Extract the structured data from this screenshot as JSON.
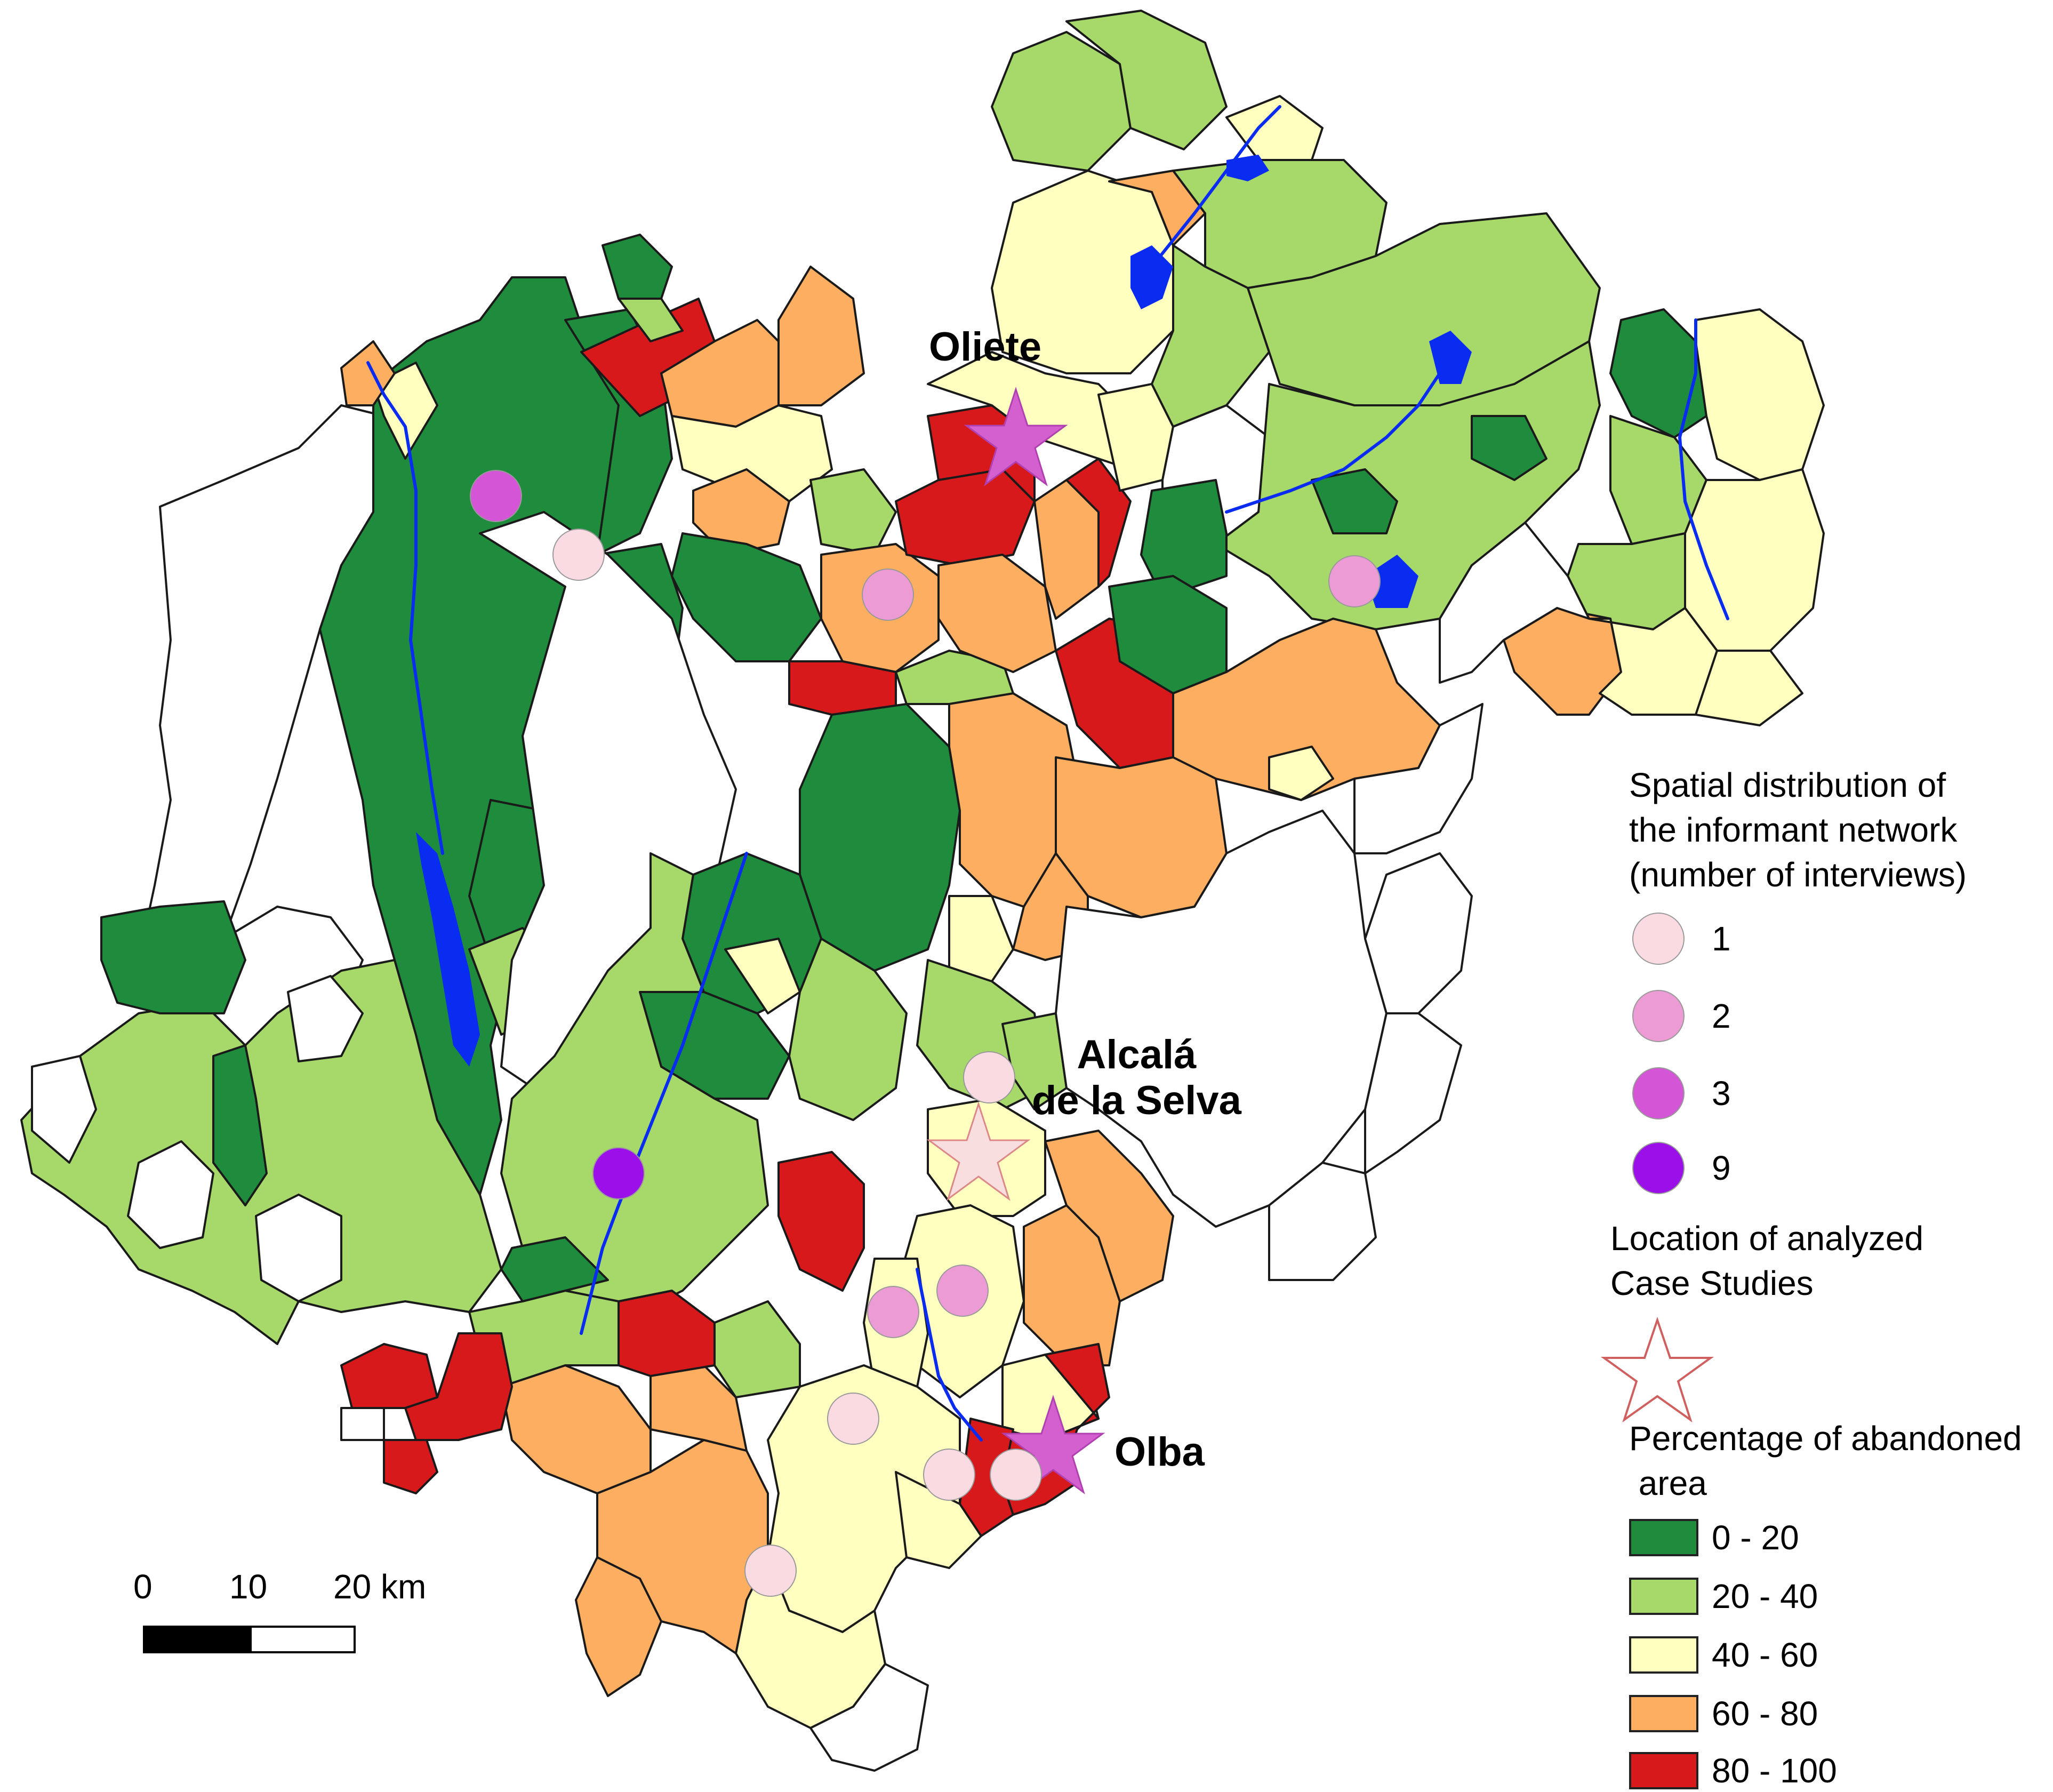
{
  "colors": {
    "c0_20": "#1e8c3c",
    "c20_40": "#a6d96a",
    "c40_60": "#ffffc0",
    "c60_80": "#fdae61",
    "c80_100": "#d7191c",
    "none": "#ffffff",
    "water": "#0a2cf0",
    "interviews_1": "#fadbe2",
    "interviews_2": "#ec9bd4",
    "interviews_3": "#d455d6",
    "interviews_9": "#9b10e8",
    "case_study_star": "#d45fcf",
    "case_study_star_light": "#f8dedf"
  },
  "towns": {
    "oliete": "Oliete",
    "alcala": "Alcalá\nde la Selva",
    "olba": "Olba"
  },
  "legend": {
    "informant_title": "Spatial distribution of\nthe informant network\n(number of interviews)",
    "interview_classes": [
      {
        "label": "1",
        "color": "#fadbe2"
      },
      {
        "label": "2",
        "color": "#ec9bd4"
      },
      {
        "label": "3",
        "color": "#d455d6"
      },
      {
        "label": "9",
        "color": "#9b10e8"
      }
    ],
    "case_studies_title": "Location of analyzed\nCase Studies",
    "abandoned_title": "Percentage of abandoned\n area",
    "abandoned_classes": [
      {
        "label": "0 - 20",
        "color": "#1e8c3c"
      },
      {
        "label": "20 - 40",
        "color": "#a6d96a"
      },
      {
        "label": "40 - 60",
        "color": "#ffffc0"
      },
      {
        "label": "60 - 80",
        "color": "#fdae61"
      },
      {
        "label": "80 - 100",
        "color": "#d7191c"
      }
    ]
  },
  "scale_bar": {
    "labels": [
      "0",
      "10",
      "20 km"
    ]
  }
}
